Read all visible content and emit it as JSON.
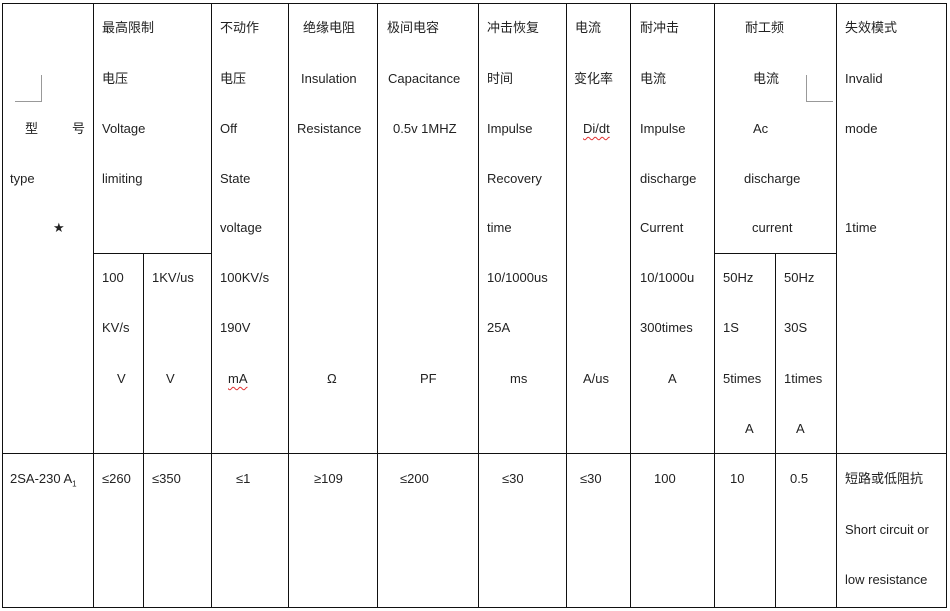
{
  "header": {
    "model": {
      "zh_left": "型",
      "zh_right": "号",
      "en": "type",
      "star": "★"
    },
    "voltage_limiting": {
      "lines": [
        "最高限制",
        "电压",
        "Voltage",
        "limiting"
      ],
      "sub_a": [
        "100",
        "KV/s",
        "V"
      ],
      "sub_b": [
        "1KV/us",
        "V"
      ]
    },
    "off_state_voltage": {
      "lines": [
        "不动作",
        "电压",
        "Off",
        "State",
        "voltage",
        "100KV/s",
        "190V",
        "mA"
      ]
    },
    "insulation_resistance": {
      "lines": [
        "绝缘电阻",
        "Insulation",
        "Resistance",
        "Ω"
      ]
    },
    "capacitance": {
      "lines": [
        "极间电容",
        "Capacitance",
        "0.5v 1MHZ",
        "PF"
      ]
    },
    "impulse_recovery_time": {
      "lines": [
        "冲击恢复",
        "时间",
        "Impulse",
        "Recovery",
        "time",
        "10/1000us",
        "25A",
        "ms"
      ]
    },
    "current_rate": {
      "lines": [
        "电流",
        "变化率",
        "Di/dt",
        "A/us"
      ]
    },
    "impulse_discharge_current": {
      "lines": [
        "耐冲击",
        "电流",
        "Impulse",
        "discharge",
        "Current",
        "10/1000u",
        "300times",
        "A"
      ]
    },
    "ac_discharge_current": {
      "lines": [
        "耐工频",
        "电流",
        "Ac",
        "discharge",
        "current"
      ],
      "sub_a": [
        "50Hz",
        "1S",
        "5times",
        "A"
      ],
      "sub_b": [
        "50Hz",
        "30S",
        "1times",
        "A"
      ]
    },
    "failure_mode": {
      "lines": [
        "失效模式",
        "Invalid",
        "mode",
        "1time"
      ]
    }
  },
  "rows": [
    {
      "model": "2SA-230 A",
      "model_sub": "1",
      "v_limit_100kv": "≤260",
      "v_limit_1kv": "≤350",
      "off_state": "≤1",
      "insulation": "≥109",
      "capacitance": "≤200",
      "recovery": "≤30",
      "di_dt": "≤30",
      "impulse": "100",
      "ac_1s": "10",
      "ac_30s": "0.5",
      "failure": [
        "短路或低阻抗",
        "Short circuit or",
        "low resistance"
      ]
    }
  ]
}
